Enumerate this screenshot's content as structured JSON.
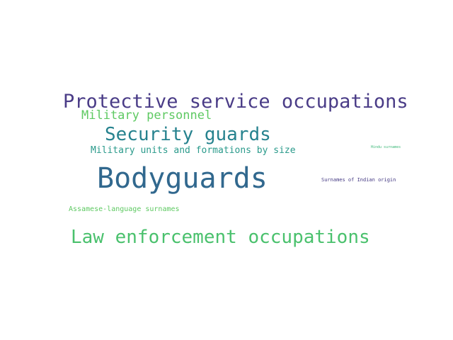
{
  "words": [
    {
      "text": "Protective service occupations",
      "color": "#4a3c87"
    },
    {
      "text": "Military personnel",
      "color": "#5ec962"
    },
    {
      "text": "Security guards",
      "color": "#26828e"
    },
    {
      "text": "Military units and formations by size",
      "color": "#2a9a8b"
    },
    {
      "text": "Hindu surnames",
      "color": "#3cb878"
    },
    {
      "text": "Bodyguards",
      "color": "#31688e"
    },
    {
      "text": "Surnames of Indian origin",
      "color": "#443983"
    },
    {
      "text": "Assamese-language surnames",
      "color": "#5ec962"
    },
    {
      "text": "Law enforcement occupations",
      "color": "#4ac16d"
    }
  ]
}
